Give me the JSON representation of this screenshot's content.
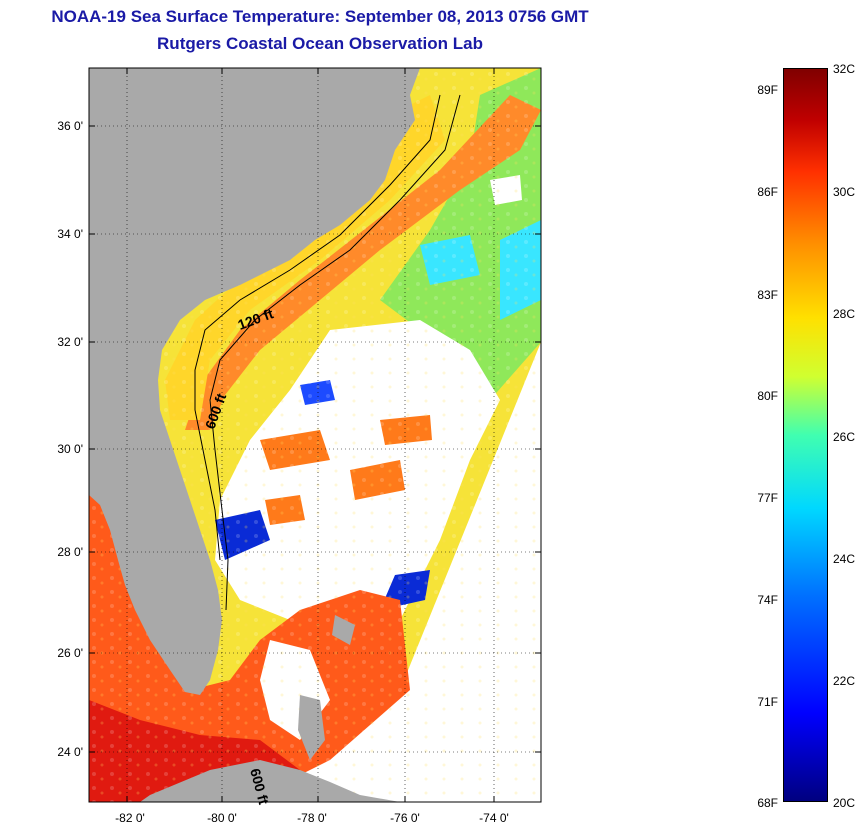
{
  "header": {
    "title": "NOAA-19 Sea Surface Temperature:  September 08, 2013 0756 GMT",
    "subtitle": "Rutgers Coastal Ocean Observation Lab"
  },
  "map": {
    "lat_labels": [
      "36 0'",
      "34 0'",
      "32 0'",
      "30 0'",
      "28 0'",
      "26 0'",
      "24 0'"
    ],
    "lon_labels": [
      "-82 0'",
      "-80 0'",
      "-78 0'",
      "-76 0'",
      "-74 0'"
    ],
    "contour_labels": [
      "120 ft",
      "600 ft",
      "600 ft"
    ],
    "colors": {
      "land": "#a9a9a9",
      "clouds": "#ffffff",
      "warm_water": "#ff6a1a",
      "shelf_water": "#ffd62a",
      "cool_water": "#39e6ff"
    }
  },
  "colorbar": {
    "fahrenheit_labels": [
      "89F",
      "86F",
      "83F",
      "80F",
      "77F",
      "74F",
      "71F",
      "68F"
    ],
    "celsius_labels": [
      "32C",
      "30C",
      "28C",
      "26C",
      "24C",
      "22C",
      "20C"
    ]
  }
}
